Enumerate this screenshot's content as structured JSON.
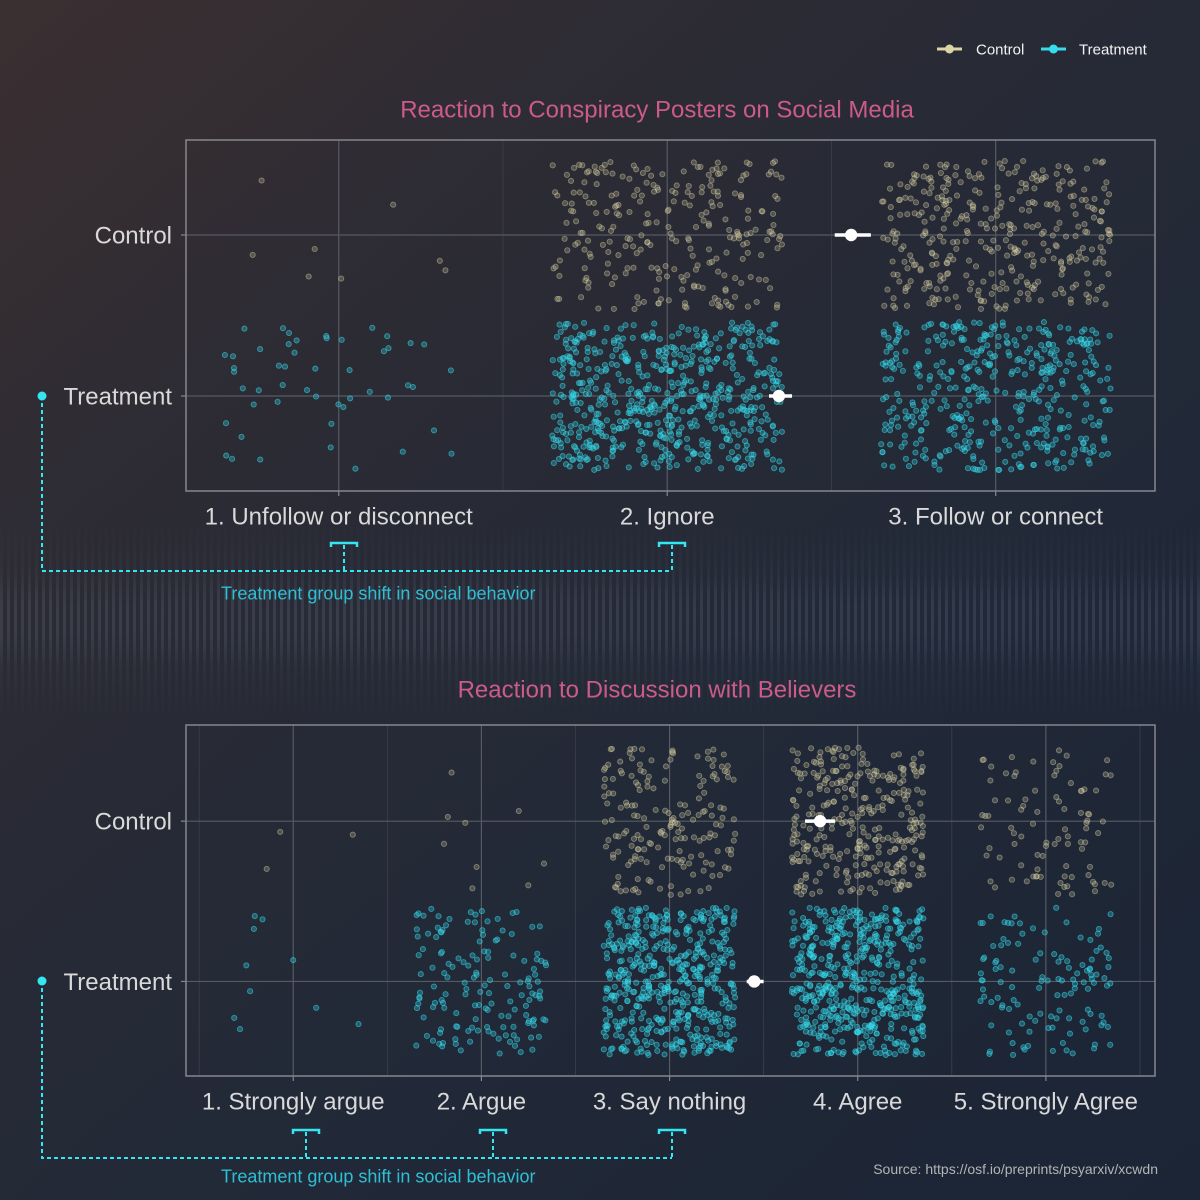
{
  "legend": {
    "position": "top-right",
    "items": [
      {
        "label": "Control",
        "color": "#ddd4a6"
      },
      {
        "label": "Treatment",
        "color": "#36dcec"
      }
    ]
  },
  "colors": {
    "title": "#cc5b89",
    "annotation": "#33e6f0",
    "annotation_text": "#2fbfd4",
    "axis_text": "#d9d9d9",
    "source_text": "#b4b4b4"
  },
  "chart_data": [
    {
      "type": "scatter",
      "title": "Reaction to Conspiracy Posters on Social Media",
      "categories": [
        "1. Unfollow or disconnect",
        "2. Ignore",
        "3. Follow or connect"
      ],
      "y_categories": [
        "Control",
        "Treatment"
      ],
      "xlim": [
        0.535,
        3.485
      ],
      "ylim": [
        0.41,
        2.59
      ],
      "grid": true,
      "series": [
        {
          "name": "Control",
          "color": "#ddd4a6",
          "counts": [
            8,
            260,
            350
          ],
          "mean": 2.56,
          "mean_ci": [
            2.51,
            2.62
          ]
        },
        {
          "name": "Treatment",
          "color": "#36dcec",
          "counts": [
            50,
            600,
            420
          ],
          "mean": 2.34,
          "mean_ci": [
            2.31,
            2.38
          ]
        }
      ]
    },
    {
      "type": "scatter",
      "title": "Reaction to Discussion with Believers",
      "categories": [
        "1. Strongly argue",
        "2. Argue",
        "3. Say nothing",
        "4. Agree",
        "5. Strongly Agree"
      ],
      "y_categories": [
        "Control",
        "Treatment"
      ],
      "xlim": [
        0.43,
        5.58
      ],
      "ylim": [
        0.41,
        2.6
      ],
      "grid": true,
      "series": [
        {
          "name": "Control",
          "color": "#ddd4a6",
          "counts": [
            3,
            9,
            180,
            310,
            90
          ],
          "mean": 3.8,
          "mean_ci": [
            3.72,
            3.88
          ]
        },
        {
          "name": "Treatment",
          "color": "#36dcec",
          "counts": [
            10,
            150,
            500,
            520,
            120
          ],
          "mean": 3.45,
          "mean_ci": [
            3.41,
            3.5
          ]
        }
      ]
    }
  ],
  "annotations": [
    {
      "text": "Treatment group shift in social behavior"
    },
    {
      "text": "Treatment group shift in social behavior"
    }
  ],
  "source": "Source: https://osf.io/preprints/psyarxiv/xcwdn"
}
